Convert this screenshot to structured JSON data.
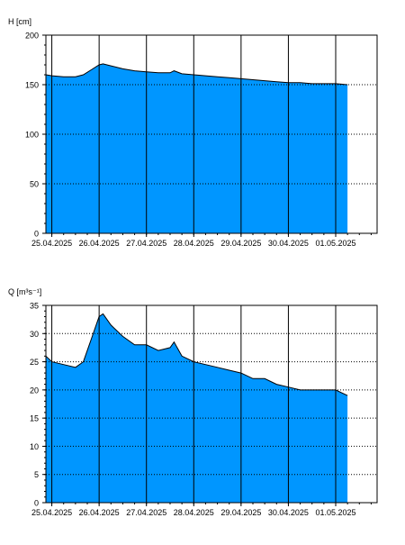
{
  "chart_data": [
    {
      "type": "area",
      "ylabel": "H [cm]",
      "xlabel": "",
      "ylim": [
        0,
        200
      ],
      "yticks": [
        0,
        50,
        100,
        150,
        200
      ],
      "x_tick_labels": [
        "25.04.2025",
        "26.04.2025",
        "27.04.2025",
        "28.04.2025",
        "29.04.2025",
        "30.04.2025",
        "01.05.2025"
      ],
      "x_start": "24.04.2025 21:00",
      "x_end": "01.05.2025 21:00",
      "grid": true,
      "fill_color": "#0096ff",
      "series": [
        {
          "x": [
            "24.04.2025 21:00",
            "25.04.2025 00:00",
            "25.04.2025 06:00",
            "25.04.2025 12:00",
            "25.04.2025 16:00",
            "25.04.2025 20:00",
            "26.04.2025 00:00",
            "26.04.2025 02:00",
            "26.04.2025 06:00",
            "26.04.2025 12:00",
            "26.04.2025 18:00",
            "27.04.2025 00:00",
            "27.04.2025 06:00",
            "27.04.2025 12:00",
            "27.04.2025 14:00",
            "27.04.2025 18:00",
            "28.04.2025 00:00",
            "28.04.2025 06:00",
            "28.04.2025 12:00",
            "28.04.2025 18:00",
            "29.04.2025 00:00",
            "29.04.2025 06:00",
            "29.04.2025 12:00",
            "29.04.2025 18:00",
            "30.04.2025 00:00",
            "30.04.2025 06:00",
            "30.04.2025 12:00",
            "30.04.2025 18:00",
            "01.05.2025 00:00",
            "01.05.2025 06:00"
          ],
          "values": [
            160,
            159,
            158,
            158,
            160,
            165,
            170,
            171,
            169,
            166,
            164,
            163,
            162,
            162,
            164,
            161,
            160,
            159,
            158,
            157,
            156,
            155,
            154,
            153,
            152,
            152,
            151,
            151,
            151,
            150
          ]
        }
      ]
    },
    {
      "type": "area",
      "ylabel": "Q [m³s⁻¹]",
      "xlabel": "",
      "ylim": [
        0,
        35
      ],
      "yticks": [
        0,
        5,
        10,
        15,
        20,
        25,
        30,
        35
      ],
      "x_tick_labels": [
        "25.04.2025",
        "26.04.2025",
        "27.04.2025",
        "28.04.2025",
        "29.04.2025",
        "30.04.2025",
        "01.05.2025"
      ],
      "x_start": "24.04.2025 21:00",
      "x_end": "01.05.2025 21:00",
      "grid": true,
      "fill_color": "#0096ff",
      "series": [
        {
          "x": [
            "24.04.2025 21:00",
            "25.04.2025 00:00",
            "25.04.2025 06:00",
            "25.04.2025 12:00",
            "25.04.2025 16:00",
            "25.04.2025 20:00",
            "26.04.2025 00:00",
            "26.04.2025 02:00",
            "26.04.2025 06:00",
            "26.04.2025 12:00",
            "26.04.2025 18:00",
            "27.04.2025 00:00",
            "27.04.2025 06:00",
            "27.04.2025 12:00",
            "27.04.2025 14:00",
            "27.04.2025 18:00",
            "28.04.2025 00:00",
            "28.04.2025 06:00",
            "28.04.2025 12:00",
            "28.04.2025 18:00",
            "29.04.2025 00:00",
            "29.04.2025 06:00",
            "29.04.2025 12:00",
            "29.04.2025 18:00",
            "30.04.2025 00:00",
            "30.04.2025 06:00",
            "30.04.2025 12:00",
            "30.04.2025 18:00",
            "01.05.2025 00:00",
            "01.05.2025 06:00"
          ],
          "values": [
            26,
            25,
            24.5,
            24,
            25,
            29,
            33,
            33.5,
            31.5,
            29.5,
            28,
            28,
            27,
            27.5,
            28.5,
            26,
            25,
            24.5,
            24,
            23.5,
            23,
            22,
            22,
            21,
            20.5,
            20,
            20,
            20,
            20,
            19
          ]
        }
      ]
    }
  ]
}
